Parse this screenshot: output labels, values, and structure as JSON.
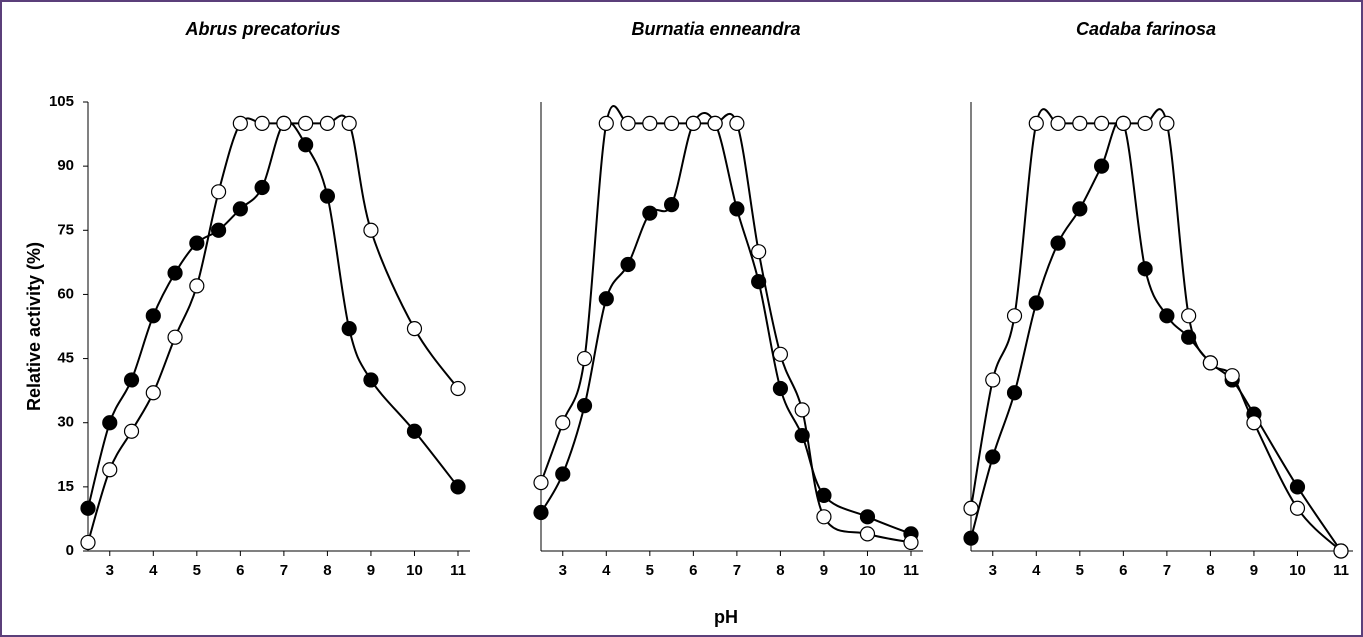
{
  "chart_data": [
    {
      "type": "line",
      "title": "Abrus precatorius",
      "ylabel": "Relative activity (%)",
      "x": [
        2.5,
        3,
        3.5,
        4,
        4.5,
        5,
        5.5,
        6,
        6.5,
        7,
        7.5,
        8,
        8.5,
        9,
        10,
        11
      ],
      "xlim": [
        2.5,
        11
      ],
      "xticks": [
        3,
        4,
        5,
        6,
        7,
        8,
        9,
        10,
        11
      ],
      "ylim": [
        0,
        105
      ],
      "yticks": [
        0,
        15,
        30,
        45,
        60,
        75,
        90,
        105
      ],
      "series": [
        {
          "color": "#000000",
          "marker_fill": "#000000",
          "values": [
            10,
            30,
            40,
            55,
            65,
            72,
            75,
            80,
            85,
            100,
            95,
            83,
            52,
            40,
            28,
            15
          ]
        },
        {
          "color": "#000000",
          "marker_fill": "#ffffff",
          "values": [
            2,
            19,
            28,
            37,
            50,
            62,
            84,
            100,
            100,
            100,
            100,
            100,
            100,
            75,
            52,
            38
          ]
        }
      ]
    },
    {
      "type": "line",
      "title": "Burnatia enneandra",
      "xlabel": "pH",
      "x": [
        2.5,
        3,
        3.5,
        4,
        4.5,
        5,
        5.5,
        6,
        6.5,
        7,
        7.5,
        8,
        8.5,
        9,
        10,
        11
      ],
      "xlim": [
        2.5,
        11
      ],
      "xticks": [
        3,
        4,
        5,
        6,
        7,
        8,
        9,
        10,
        11
      ],
      "ylim": [
        0,
        105
      ],
      "series": [
        {
          "color": "#000000",
          "marker_fill": "#000000",
          "values": [
            9,
            18,
            34,
            59,
            67,
            79,
            81,
            100,
            100,
            80,
            63,
            38,
            27,
            13,
            8,
            4
          ]
        },
        {
          "color": "#000000",
          "marker_fill": "#ffffff",
          "values": [
            16,
            30,
            45,
            100,
            100,
            100,
            100,
            100,
            100,
            100,
            70,
            46,
            33,
            8,
            4,
            2
          ]
        }
      ]
    },
    {
      "type": "line",
      "title": "Cadaba farinosa",
      "x": [
        2.5,
        3,
        3.5,
        4,
        4.5,
        5,
        5.5,
        6,
        6.5,
        7,
        7.5,
        8,
        8.5,
        9,
        10,
        11
      ],
      "xlim": [
        2.5,
        11
      ],
      "xticks": [
        3,
        4,
        5,
        6,
        7,
        8,
        9,
        10,
        11
      ],
      "ylim": [
        0,
        105
      ],
      "series": [
        {
          "color": "#000000",
          "marker_fill": "#000000",
          "values": [
            3,
            22,
            37,
            58,
            72,
            80,
            90,
            100,
            66,
            55,
            50,
            44,
            40,
            32,
            15,
            0
          ]
        },
        {
          "color": "#000000",
          "marker_fill": "#ffffff",
          "values": [
            10,
            40,
            55,
            100,
            100,
            100,
            100,
            100,
            100,
            100,
            55,
            44,
            41,
            30,
            10,
            0
          ]
        }
      ]
    }
  ]
}
